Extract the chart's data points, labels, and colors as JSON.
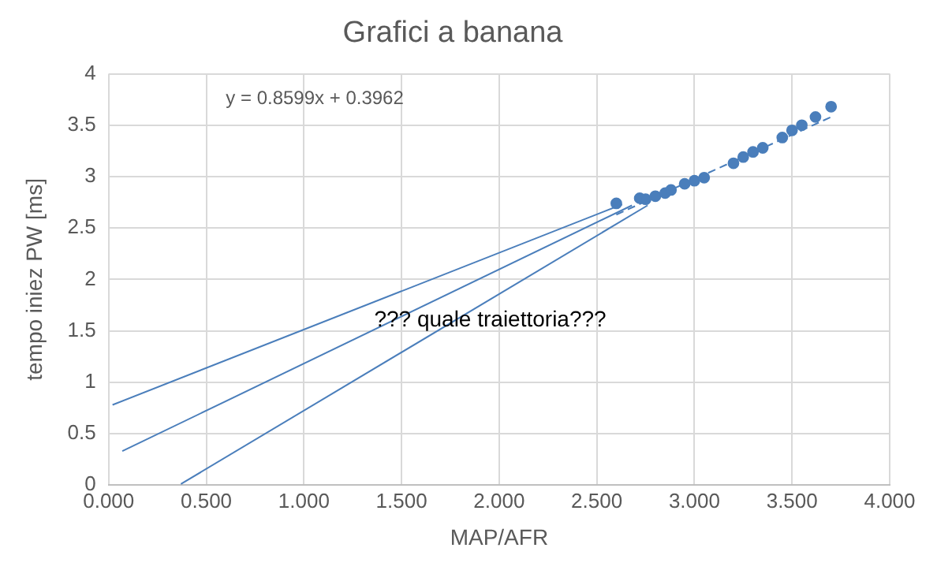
{
  "chart_data": {
    "type": "scatter",
    "title": "Grafici a banana",
    "xlabel": "MAP/AFR",
    "ylabel": "tempo iniez PW [ms]",
    "x": [
      2.6,
      2.72,
      2.75,
      2.8,
      2.85,
      2.88,
      2.95,
      3.0,
      3.05,
      3.2,
      3.25,
      3.3,
      3.35,
      3.45,
      3.5,
      3.55,
      3.62,
      3.7
    ],
    "series": [
      {
        "color": "#4a7ebb",
        "marker": "circle",
        "values": [
          2.74,
          2.79,
          2.78,
          2.81,
          2.84,
          2.87,
          2.93,
          2.96,
          2.99,
          3.13,
          3.19,
          3.24,
          3.28,
          3.38,
          3.45,
          3.5,
          3.58,
          3.68
        ]
      },
      {
        "type": "line",
        "color": "#4a7ebb",
        "line_style": "dashed",
        "marker": "none",
        "x": [
          2.6,
          3.7
        ],
        "values": [
          2.63,
          3.58
        ]
      },
      {
        "type": "line",
        "color": "#4a7ebb",
        "line_style": "solid",
        "marker": "none",
        "x": [
          0.02,
          2.63
        ],
        "values": [
          0.78,
          2.73
        ]
      },
      {
        "type": "line",
        "color": "#4a7ebb",
        "line_style": "solid",
        "marker": "none",
        "x": [
          0.07,
          2.68
        ],
        "values": [
          0.33,
          2.72
        ]
      },
      {
        "type": "line",
        "color": "#4a7ebb",
        "line_style": "solid",
        "marker": "none",
        "x": [
          0.37,
          2.76
        ],
        "values": [
          0.01,
          2.72
        ]
      }
    ],
    "xlim": [
      0,
      4
    ],
    "xticks": [
      {
        "value": 0,
        "label": "0.000"
      },
      {
        "value": 0.5,
        "label": "0.500"
      },
      {
        "value": 1,
        "label": "1.000"
      },
      {
        "value": 1.5,
        "label": "1.500"
      },
      {
        "value": 2,
        "label": "2.000"
      },
      {
        "value": 2.5,
        "label": "2.500"
      },
      {
        "value": 3,
        "label": "3.000"
      },
      {
        "value": 3.5,
        "label": "3.500"
      },
      {
        "value": 4,
        "label": "4.000"
      }
    ],
    "ylim": [
      0,
      4
    ],
    "yticks": [
      0,
      0.5,
      1,
      1.5,
      2,
      2.5,
      3,
      3.5,
      4
    ],
    "grid": true,
    "legend": false,
    "annotations": [
      "y = 0.8599x + 0.3962",
      "??? quale traiettoria???"
    ]
  }
}
